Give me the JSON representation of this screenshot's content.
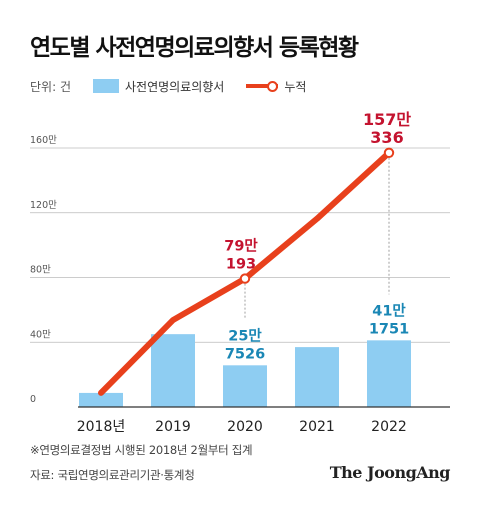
{
  "title": "연도별 사전연명의료의향서 등록현황",
  "legend": {
    "unit": "단위: 건",
    "bar_label": "사전연명의료의향서",
    "line_label": "누적"
  },
  "colors": {
    "bar": "#8ecdf2",
    "line": "#e8401c",
    "bar_label": "#1a87b5",
    "line_label": "#c4132f",
    "grid": "#bbbbbb"
  },
  "footnote": "※연명의료결정법 시행된 2018년 2월부터 집계",
  "source": "자료: 국립연명의료관리기관·통계청",
  "brand": "The JoongAng",
  "chart_data": {
    "type": "bar",
    "title": "연도별 사전연명의료의향서 등록현황",
    "categories": [
      "2018년",
      "2019",
      "2020",
      "2021",
      "2022"
    ],
    "ylim": [
      0,
      1650000
    ],
    "yticks": [
      {
        "value": 0,
        "label": "0"
      },
      {
        "value": 400000,
        "label": "40만"
      },
      {
        "value": 800000,
        "label": "80만"
      },
      {
        "value": 1200000,
        "label": "120만"
      },
      {
        "value": 1600000,
        "label": "160만"
      }
    ],
    "grid": true,
    "legend_position": "top-left",
    "series": [
      {
        "name": "사전연명의료의향서",
        "type": "bar",
        "values": [
          87000,
          450000,
          257526,
          370000,
          411751
        ],
        "labels": [
          null,
          null,
          [
            "25만",
            "7526"
          ],
          null,
          [
            "41만",
            "1751"
          ]
        ]
      },
      {
        "name": "누적",
        "type": "line",
        "values": [
          87000,
          537000,
          793193,
          1163000,
          1570336
        ],
        "labels": [
          null,
          null,
          [
            "79만",
            "193"
          ],
          null,
          [
            "157만",
            "336"
          ]
        ]
      }
    ]
  }
}
